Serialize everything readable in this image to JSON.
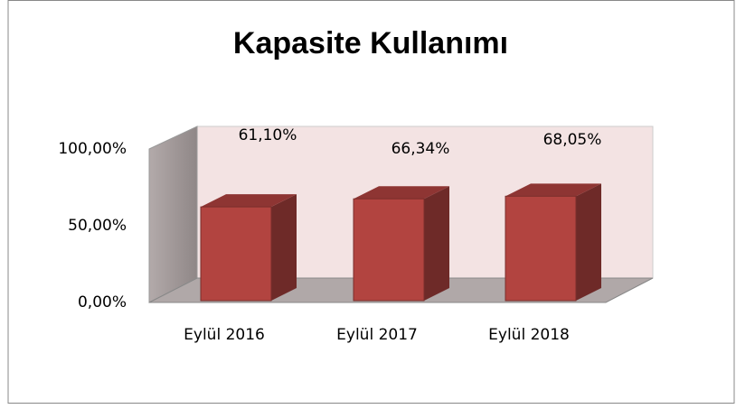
{
  "chart_data": {
    "type": "bar3d",
    "title": "Kapasite Kullanımı",
    "categories": [
      "Eylül 2016",
      "Eylül 2017",
      "Eylül 2018"
    ],
    "values": [
      61.1,
      66.34,
      68.05
    ],
    "value_labels": [
      "61,10%",
      "66,34%",
      "68,05%"
    ],
    "color": "#b24440",
    "ylim": [
      0,
      100
    ],
    "yticks": [
      {
        "value": 0,
        "label": "0,00%"
      },
      {
        "value": 50,
        "label": "50,00%"
      },
      {
        "value": 100,
        "label": "100,00%"
      }
    ],
    "grid": false
  }
}
